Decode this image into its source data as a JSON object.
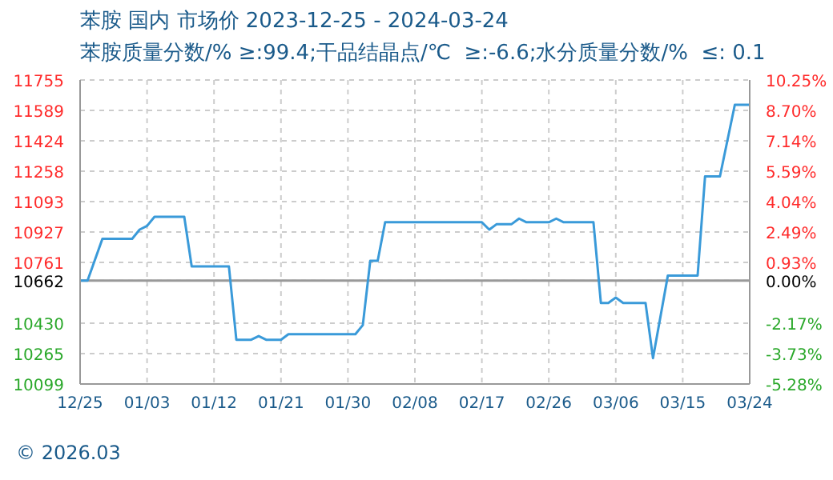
{
  "chart_data": {
    "type": "line",
    "title": "苯胺 国内 市场价 2023-12-25 - 2024-03-24",
    "subtitle": "苯胺质量分数/% ≥:99.4;干品结晶点/℃  ≥:-6.6;水分质量分数/%  ≤: 0.1",
    "annotations": [
      "© 2026.03"
    ],
    "x": [
      "2023-12-25",
      "2023-12-26",
      "2023-12-28",
      "2024-01-01",
      "2024-01-02",
      "2024-01-03",
      "2024-01-04",
      "2024-01-08",
      "2024-01-09",
      "2024-01-14",
      "2024-01-15",
      "2024-01-17",
      "2024-01-18",
      "2024-01-19",
      "2024-01-21",
      "2024-01-22",
      "2024-01-31",
      "2024-02-01",
      "2024-02-02",
      "2024-02-03",
      "2024-02-04",
      "2024-02-17",
      "2024-02-18",
      "2024-02-19",
      "2024-02-21",
      "2024-02-22",
      "2024-02-23",
      "2024-02-26",
      "2024-02-27",
      "2024-02-28",
      "2024-03-03",
      "2024-03-04",
      "2024-03-05",
      "2024-03-06",
      "2024-03-07",
      "2024-03-10",
      "2024-03-11",
      "2024-03-13",
      "2024-03-17",
      "2024-03-18",
      "2024-03-20",
      "2024-03-22",
      "2024-03-24"
    ],
    "series": [
      {
        "color": "#3a9ad9",
        "values": [
          10662,
          10662,
          10890,
          10890,
          10940,
          10960,
          11010,
          11010,
          10740,
          10740,
          10340,
          10340,
          10360,
          10340,
          10340,
          10370,
          10370,
          10420,
          10770,
          10770,
          10980,
          10980,
          10940,
          10970,
          10970,
          11000,
          10980,
          10980,
          11000,
          10980,
          10980,
          10540,
          10540,
          10570,
          10540,
          10540,
          10240,
          10690,
          10690,
          11230,
          11230,
          11620,
          11620
        ]
      }
    ],
    "xlim": [
      "2023-12-25",
      "2024-03-24"
    ],
    "xticks": [
      {
        "value": "2023-12-25",
        "label": "12/25"
      },
      {
        "value": "2024-01-03",
        "label": "01/03"
      },
      {
        "value": "2024-01-12",
        "label": "01/12"
      },
      {
        "value": "2024-01-21",
        "label": "01/21"
      },
      {
        "value": "2024-01-30",
        "label": "01/30"
      },
      {
        "value": "2024-02-08",
        "label": "02/08"
      },
      {
        "value": "2024-02-17",
        "label": "02/17"
      },
      {
        "value": "2024-02-26",
        "label": "02/26"
      },
      {
        "value": "2024-03-06",
        "label": "03/06"
      },
      {
        "value": "2024-03-15",
        "label": "03/15"
      },
      {
        "value": "2024-03-24",
        "label": "03/24"
      }
    ],
    "ylim": [
      10099,
      11755
    ],
    "yticks": [
      10099,
      10265,
      10430,
      10662,
      10761,
      10927,
      11093,
      11258,
      11424,
      11589,
      11755
    ],
    "y2lim": [
      -5.28,
      10.25
    ],
    "y2ticks": [
      {
        "value": -5.28,
        "label": "-5.28%"
      },
      {
        "value": -3.73,
        "label": "-3.73%"
      },
      {
        "value": -2.17,
        "label": "-2.17%"
      },
      {
        "value": 0,
        "label": "0.00%"
      },
      {
        "value": 0.93,
        "label": "0.93%"
      },
      {
        "value": 2.49,
        "label": "2.49%"
      },
      {
        "value": 4.04,
        "label": "4.04%"
      },
      {
        "value": 5.59,
        "label": "5.59%"
      },
      {
        "value": 7.14,
        "label": "7.14%"
      },
      {
        "value": 8.7,
        "label": "8.70%"
      },
      {
        "value": 10.25,
        "label": "10.25%"
      }
    ],
    "ref_lines": [
      {
        "axis": "y",
        "value": 10662,
        "color": "#999999"
      }
    ],
    "grid": true,
    "marker": "none",
    "line_style": "solid",
    "legend": false
  }
}
